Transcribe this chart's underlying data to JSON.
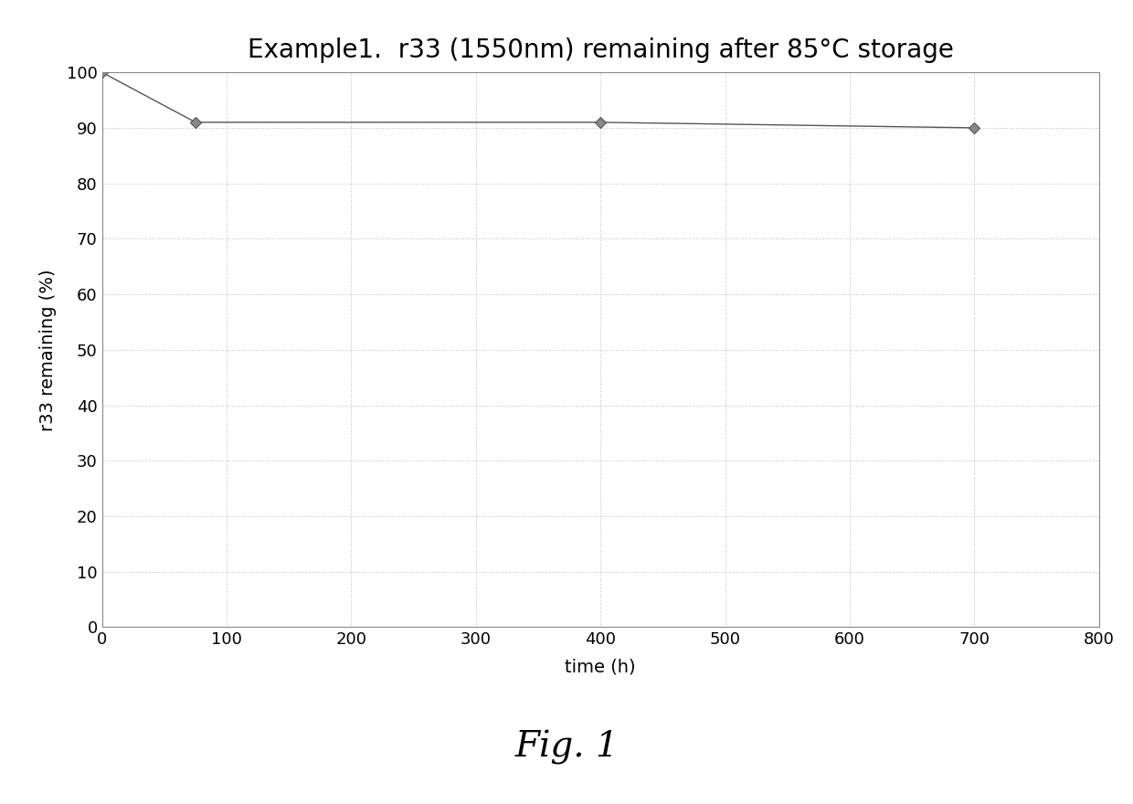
{
  "title": "Example1.  r33 (1550nm) remaining after 85°C storage",
  "xlabel": "time (h)",
  "ylabel": "r33 remaining (%)",
  "x_data": [
    0,
    75,
    400,
    700
  ],
  "y_data": [
    100,
    91,
    91,
    90
  ],
  "xlim": [
    0,
    800
  ],
  "ylim": [
    0,
    100
  ],
  "x_ticks": [
    0,
    100,
    200,
    300,
    400,
    500,
    600,
    700,
    800
  ],
  "y_ticks": [
    0,
    10,
    20,
    30,
    40,
    50,
    60,
    70,
    80,
    90,
    100
  ],
  "line_color": "#555555",
  "marker": "D",
  "marker_size": 6,
  "marker_facecolor": "#888888",
  "marker_edgecolor": "#555555",
  "grid_color": "#bbbbbb",
  "grid_linestyle": ":",
  "title_fontsize": 20,
  "label_fontsize": 14,
  "tick_fontsize": 13,
  "fig_caption": "Fig. 1",
  "fig_caption_fontsize": 28,
  "background_color": "#ffffff",
  "spine_color": "#888888"
}
